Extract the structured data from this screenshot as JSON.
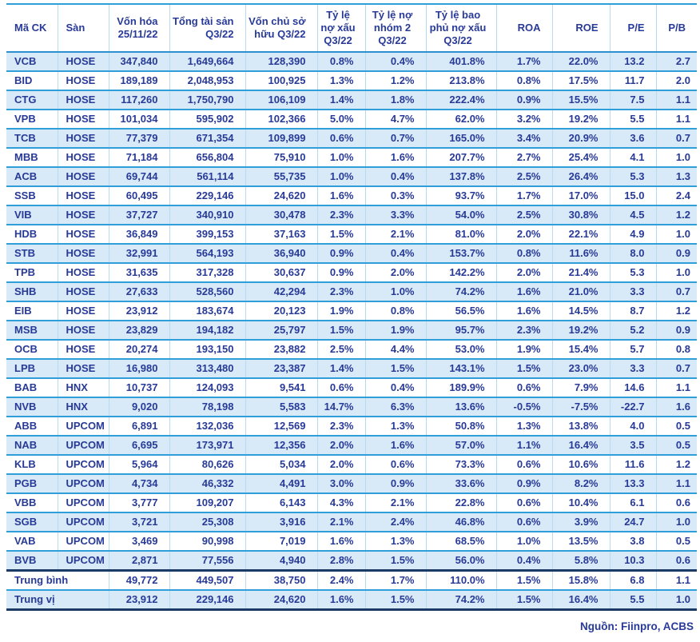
{
  "colors": {
    "text_navy": "#283a97",
    "row_alt_bg": "#d8eaf7",
    "row_divider": "#2e9fd9",
    "column_divider": "#b5dcf3",
    "summary_divider": "#1b3a66"
  },
  "source_note": "Nguồn: Fiinpro, ACBS",
  "table": {
    "columns": [
      {
        "key": "ma_ck",
        "label": "Mã CK"
      },
      {
        "key": "san",
        "label": "Sàn"
      },
      {
        "key": "von_hoa",
        "label": "Vốn hóa\n25/11/22"
      },
      {
        "key": "tong_tai_san",
        "label": "Tổng tài sản\nQ3/22"
      },
      {
        "key": "von_chu_so_huu",
        "label": "Vốn chủ sở\nhữu Q3/22"
      },
      {
        "key": "ty_le_no_xau",
        "label": "Tỷ lệ\nnợ xấu\nQ3/22"
      },
      {
        "key": "ty_le_no_nhom_2",
        "label": "Tỷ lệ nợ\nnhóm 2\nQ3/22"
      },
      {
        "key": "ty_le_bao_phu_no_xau",
        "label": "Tỷ lệ bao\nphủ nợ xấu\nQ3/22"
      },
      {
        "key": "roa",
        "label": "ROA"
      },
      {
        "key": "roe",
        "label": "ROE"
      },
      {
        "key": "pe",
        "label": "P/E"
      },
      {
        "key": "pb",
        "label": "P/B"
      }
    ],
    "rows": [
      {
        "cells": [
          "VCB",
          "HOSE",
          "347,840",
          "1,649,664",
          "128,390",
          "0.8%",
          "0.4%",
          "401.8%",
          "1.7%",
          "22.0%",
          "13.2",
          "2.7"
        ]
      },
      {
        "cells": [
          "BID",
          "HOSE",
          "189,189",
          "2,048,953",
          "100,925",
          "1.3%",
          "1.2%",
          "213.8%",
          "0.8%",
          "17.5%",
          "11.7",
          "2.0"
        ]
      },
      {
        "cells": [
          "CTG",
          "HOSE",
          "117,260",
          "1,750,790",
          "106,109",
          "1.4%",
          "1.8%",
          "222.4%",
          "0.9%",
          "15.5%",
          "7.5",
          "1.1"
        ]
      },
      {
        "cells": [
          "VPB",
          "HOSE",
          "101,034",
          "595,902",
          "102,366",
          "5.0%",
          "4.7%",
          "62.0%",
          "3.2%",
          "19.2%",
          "5.5",
          "1.1"
        ]
      },
      {
        "cells": [
          "TCB",
          "HOSE",
          "77,379",
          "671,354",
          "109,899",
          "0.6%",
          "0.7%",
          "165.0%",
          "3.4%",
          "20.9%",
          "3.6",
          "0.7"
        ]
      },
      {
        "cells": [
          "MBB",
          "HOSE",
          "71,184",
          "656,804",
          "75,910",
          "1.0%",
          "1.6%",
          "207.7%",
          "2.7%",
          "25.4%",
          "4.1",
          "1.0"
        ]
      },
      {
        "cells": [
          "ACB",
          "HOSE",
          "69,744",
          "561,114",
          "55,735",
          "1.0%",
          "0.4%",
          "137.8%",
          "2.5%",
          "26.4%",
          "5.3",
          "1.3"
        ]
      },
      {
        "cells": [
          "SSB",
          "HOSE",
          "60,495",
          "229,146",
          "24,620",
          "1.6%",
          "0.3%",
          "93.7%",
          "1.7%",
          "17.0%",
          "15.0",
          "2.4"
        ]
      },
      {
        "cells": [
          "VIB",
          "HOSE",
          "37,727",
          "340,910",
          "30,478",
          "2.3%",
          "3.3%",
          "54.0%",
          "2.5%",
          "30.8%",
          "4.5",
          "1.2"
        ]
      },
      {
        "cells": [
          "HDB",
          "HOSE",
          "36,849",
          "399,153",
          "37,163",
          "1.5%",
          "2.1%",
          "81.0%",
          "2.0%",
          "22.1%",
          "4.9",
          "1.0"
        ]
      },
      {
        "cells": [
          "STB",
          "HOSE",
          "32,991",
          "564,193",
          "36,940",
          "0.9%",
          "0.4%",
          "153.7%",
          "0.8%",
          "11.6%",
          "8.0",
          "0.9"
        ]
      },
      {
        "cells": [
          "TPB",
          "HOSE",
          "31,635",
          "317,328",
          "30,637",
          "0.9%",
          "2.0%",
          "142.2%",
          "2.0%",
          "21.4%",
          "5.3",
          "1.0"
        ]
      },
      {
        "cells": [
          "SHB",
          "HOSE",
          "27,633",
          "528,560",
          "42,294",
          "2.3%",
          "1.0%",
          "74.2%",
          "1.6%",
          "21.0%",
          "3.3",
          "0.7"
        ]
      },
      {
        "cells": [
          "EIB",
          "HOSE",
          "23,912",
          "183,674",
          "20,123",
          "1.9%",
          "0.8%",
          "56.5%",
          "1.6%",
          "14.5%",
          "8.7",
          "1.2"
        ]
      },
      {
        "cells": [
          "MSB",
          "HOSE",
          "23,829",
          "194,182",
          "25,797",
          "1.5%",
          "1.9%",
          "95.7%",
          "2.3%",
          "19.2%",
          "5.2",
          "0.9"
        ]
      },
      {
        "cells": [
          "OCB",
          "HOSE",
          "20,274",
          "193,150",
          "23,882",
          "2.5%",
          "4.4%",
          "53.0%",
          "1.9%",
          "15.4%",
          "5.7",
          "0.8"
        ]
      },
      {
        "cells": [
          "LPB",
          "HOSE",
          "16,980",
          "313,480",
          "23,387",
          "1.4%",
          "1.5%",
          "143.1%",
          "1.5%",
          "23.0%",
          "3.3",
          "0.7"
        ]
      },
      {
        "cells": [
          "BAB",
          "HNX",
          "10,737",
          "124,093",
          "9,541",
          "0.6%",
          "0.4%",
          "189.9%",
          "0.6%",
          "7.9%",
          "14.6",
          "1.1"
        ]
      },
      {
        "cells": [
          "NVB",
          "HNX",
          "9,020",
          "78,198",
          "5,583",
          "14.7%",
          "6.3%",
          "13.6%",
          "-0.5%",
          "-7.5%",
          "-22.7",
          "1.6"
        ]
      },
      {
        "cells": [
          "ABB",
          "UPCOM",
          "6,891",
          "132,036",
          "12,569",
          "2.3%",
          "1.3%",
          "50.8%",
          "1.3%",
          "13.8%",
          "4.0",
          "0.5"
        ]
      },
      {
        "cells": [
          "NAB",
          "UPCOM",
          "6,695",
          "173,971",
          "12,356",
          "2.0%",
          "1.6%",
          "57.0%",
          "1.1%",
          "16.4%",
          "3.5",
          "0.5"
        ]
      },
      {
        "cells": [
          "KLB",
          "UPCOM",
          "5,964",
          "80,626",
          "5,034",
          "2.0%",
          "0.6%",
          "73.3%",
          "0.6%",
          "10.6%",
          "11.6",
          "1.2"
        ]
      },
      {
        "cells": [
          "PGB",
          "UPCOM",
          "4,734",
          "46,332",
          "4,491",
          "3.0%",
          "0.9%",
          "33.6%",
          "0.9%",
          "8.2%",
          "13.3",
          "1.1"
        ]
      },
      {
        "cells": [
          "VBB",
          "UPCOM",
          "3,777",
          "109,207",
          "6,143",
          "4.3%",
          "2.1%",
          "22.8%",
          "0.6%",
          "10.4%",
          "6.1",
          "0.6"
        ]
      },
      {
        "cells": [
          "SGB",
          "UPCOM",
          "3,721",
          "25,308",
          "3,916",
          "2.1%",
          "2.4%",
          "46.8%",
          "0.6%",
          "3.9%",
          "24.7",
          "1.0"
        ]
      },
      {
        "cells": [
          "VAB",
          "UPCOM",
          "3,469",
          "90,998",
          "7,019",
          "1.6%",
          "1.3%",
          "68.5%",
          "1.0%",
          "13.5%",
          "3.8",
          "0.5"
        ]
      },
      {
        "cells": [
          "BVB",
          "UPCOM",
          "2,871",
          "77,556",
          "4,940",
          "2.8%",
          "1.5%",
          "56.0%",
          "0.4%",
          "5.8%",
          "10.3",
          "0.6"
        ]
      }
    ],
    "summary_rows": [
      {
        "label": "Trung bình",
        "cells": [
          "49,772",
          "449,507",
          "38,750",
          "2.4%",
          "1.7%",
          "110.0%",
          "1.5%",
          "15.8%",
          "6.8",
          "1.1"
        ]
      },
      {
        "label": "Trung vị",
        "cells": [
          "23,912",
          "229,146",
          "24,620",
          "1.6%",
          "1.5%",
          "74.2%",
          "1.5%",
          "16.4%",
          "5.5",
          "1.0"
        ]
      }
    ]
  }
}
